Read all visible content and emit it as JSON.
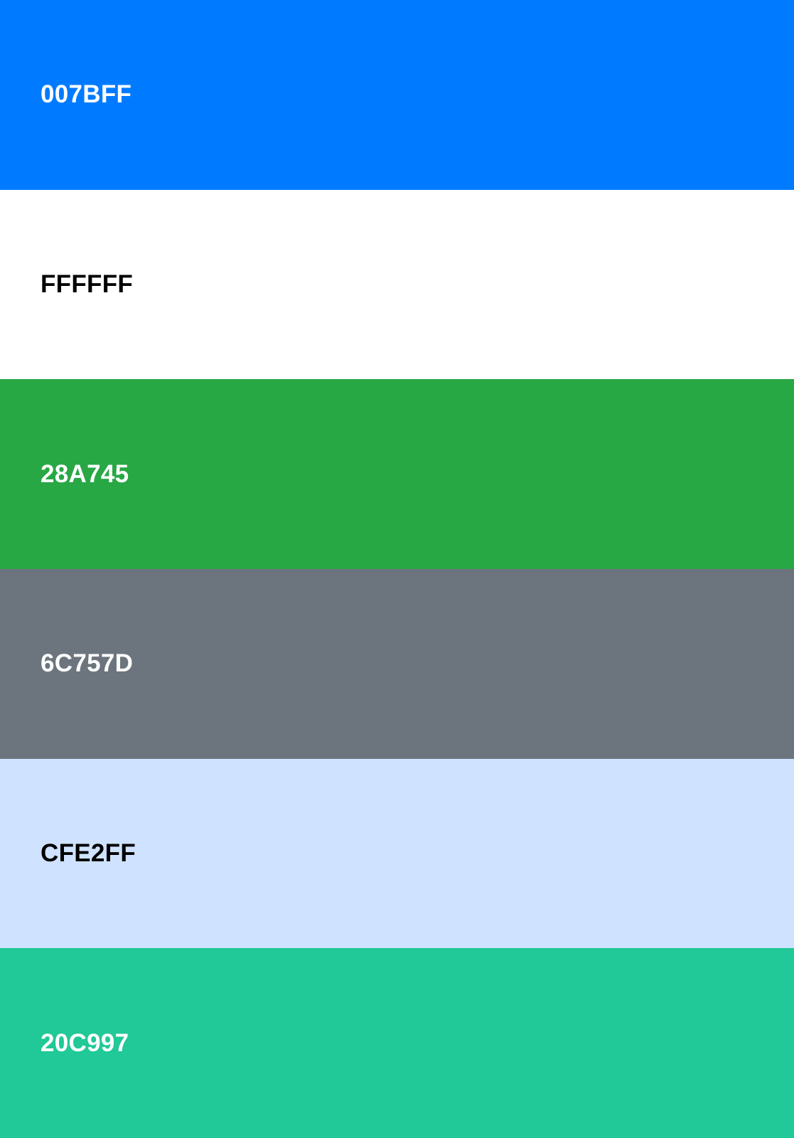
{
  "swatches": [
    {
      "label": "007BFF",
      "color": "#007BFF",
      "text_color": "#FFFFFF"
    },
    {
      "label": "FFFFFF",
      "color": "#FFFFFF",
      "text_color": "#000000"
    },
    {
      "label": "28A745",
      "color": "#28A745",
      "text_color": "#FFFFFF"
    },
    {
      "label": "6C757D",
      "color": "#6C757D",
      "text_color": "#FFFFFF"
    },
    {
      "label": "CFE2FF",
      "color": "#CFE2FF",
      "text_color": "#000000"
    },
    {
      "label": "20C997",
      "color": "#20C997",
      "text_color": "#FFFFFF"
    }
  ]
}
